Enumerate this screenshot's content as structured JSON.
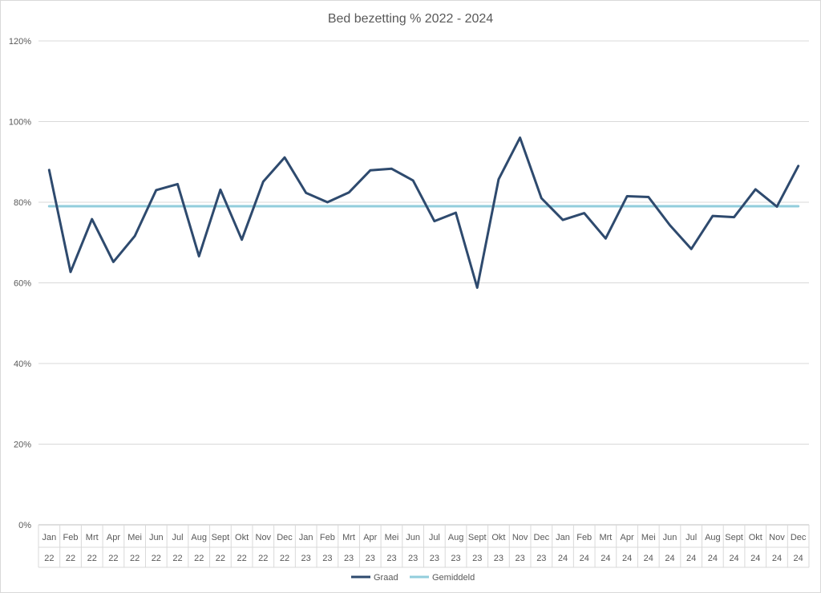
{
  "chart_data": {
    "type": "line",
    "title": "Bed bezetting % 2022 - 2024",
    "y_ticks": [
      "0%",
      "20%",
      "40%",
      "60%",
      "80%",
      "100%",
      "120%"
    ],
    "ylim": [
      0,
      120
    ],
    "grid": true,
    "legend_position": "bottom",
    "categories": [
      [
        "Jan",
        "22"
      ],
      [
        "Feb",
        "22"
      ],
      [
        "Mrt",
        "22"
      ],
      [
        "Apr",
        "22"
      ],
      [
        "Mei",
        "22"
      ],
      [
        "Jun",
        "22"
      ],
      [
        "Jul",
        "22"
      ],
      [
        "Aug",
        "22"
      ],
      [
        "Sept",
        "22"
      ],
      [
        "Okt",
        "22"
      ],
      [
        "Nov",
        "22"
      ],
      [
        "Dec",
        "22"
      ],
      [
        "Jan",
        "23"
      ],
      [
        "Feb",
        "23"
      ],
      [
        "Mrt",
        "23"
      ],
      [
        "Apr",
        "23"
      ],
      [
        "Mei",
        "23"
      ],
      [
        "Jun",
        "23"
      ],
      [
        "Jul",
        "23"
      ],
      [
        "Aug",
        "23"
      ],
      [
        "Sept",
        "23"
      ],
      [
        "Okt",
        "23"
      ],
      [
        "Nov",
        "23"
      ],
      [
        "Dec",
        "23"
      ],
      [
        "Jan",
        "24"
      ],
      [
        "Feb",
        "24"
      ],
      [
        "Mrt",
        "24"
      ],
      [
        "Apr",
        "24"
      ],
      [
        "Mei",
        "24"
      ],
      [
        "Jun",
        "24"
      ],
      [
        "Jul",
        "24"
      ],
      [
        "Aug",
        "24"
      ],
      [
        "Sept",
        "24"
      ],
      [
        "Okt",
        "24"
      ],
      [
        "Nov",
        "24"
      ],
      [
        "Dec",
        "24"
      ]
    ],
    "series": [
      {
        "name": "Graad",
        "color": "#2e4a6e",
        "values": [
          88,
          62.7,
          75.8,
          65.2,
          71.6,
          83,
          84.5,
          66.6,
          83.1,
          70.7,
          85.1,
          91.1,
          82.3,
          80,
          82.4,
          87.9,
          88.3,
          85.4,
          75.3,
          77.4,
          58.8,
          85.7,
          96,
          81,
          75.6,
          77.3,
          71,
          81.5,
          81.3,
          74.3,
          68.4,
          76.6,
          76.3,
          83.2,
          78.9,
          89
        ]
      },
      {
        "name": "Gemiddeld",
        "color": "#92cddc",
        "values": [
          79,
          79,
          79,
          79,
          79,
          79,
          79,
          79,
          79,
          79,
          79,
          79,
          79,
          79,
          79,
          79,
          79,
          79,
          79,
          79,
          79,
          79,
          79,
          79,
          79,
          79,
          79,
          79,
          79,
          79,
          79,
          79,
          79,
          79,
          79,
          79
        ]
      }
    ]
  }
}
